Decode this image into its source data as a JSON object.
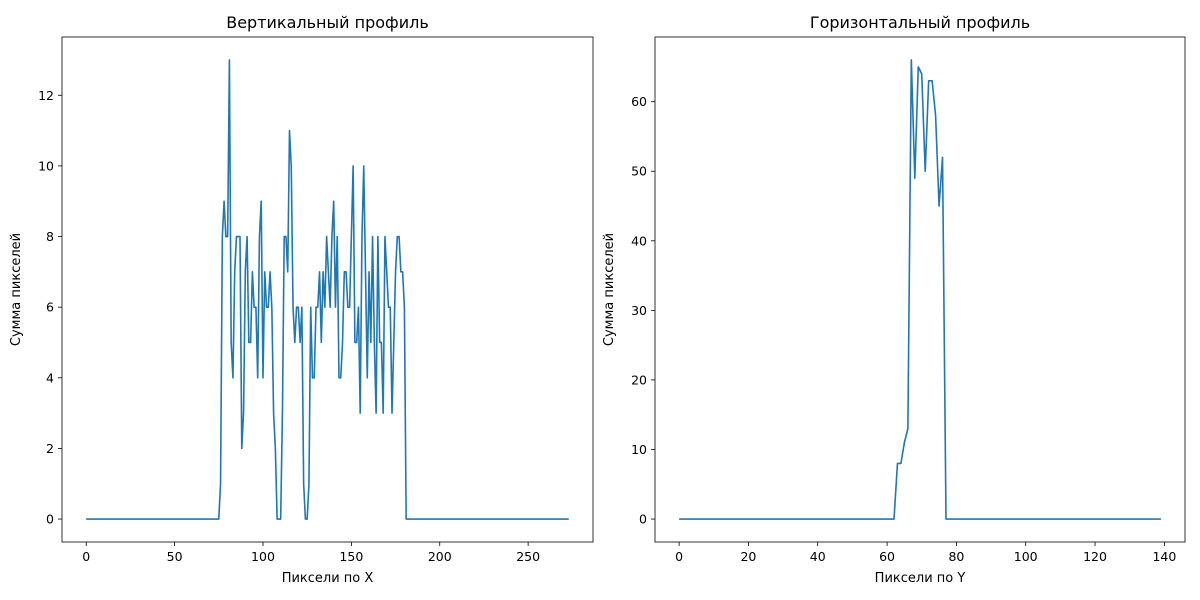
{
  "chart_data": [
    {
      "type": "line",
      "title": "Вертикальный профиль",
      "xlabel": "Пиксели по X",
      "ylabel": "Сумма пикселей",
      "xlim": [
        -13.7,
        286.7
      ],
      "ylim": [
        -0.65,
        13.65
      ],
      "xticks": [
        0,
        50,
        100,
        150,
        200,
        250
      ],
      "yticks": [
        0,
        2,
        4,
        6,
        8,
        10,
        12
      ],
      "grid": false,
      "color": "#1f77b4",
      "x": [
        0,
        75,
        76,
        77,
        78,
        79,
        80,
        81,
        82,
        83,
        84,
        85,
        86,
        87,
        88,
        89,
        90,
        91,
        92,
        93,
        94,
        95,
        96,
        97,
        98,
        99,
        100,
        101,
        102,
        103,
        104,
        105,
        106,
        107,
        108,
        109,
        110,
        111,
        112,
        113,
        114,
        115,
        116,
        117,
        118,
        119,
        120,
        121,
        122,
        123,
        124,
        125,
        126,
        127,
        128,
        129,
        130,
        131,
        132,
        133,
        134,
        135,
        136,
        137,
        138,
        139,
        140,
        141,
        142,
        143,
        144,
        145,
        146,
        147,
        148,
        149,
        150,
        151,
        152,
        153,
        154,
        155,
        156,
        157,
        158,
        159,
        160,
        161,
        162,
        163,
        164,
        165,
        166,
        167,
        168,
        169,
        170,
        171,
        172,
        173,
        174,
        175,
        176,
        177,
        178,
        179,
        180,
        181,
        182,
        273
      ],
      "y": [
        0,
        0,
        1,
        8,
        9,
        8,
        8,
        13,
        5,
        4,
        7,
        8,
        8,
        8,
        2,
        3,
        7,
        8,
        5,
        5,
        7,
        6,
        6,
        4,
        8,
        9,
        4,
        7,
        6,
        6,
        7,
        6,
        3,
        2,
        0,
        0,
        0,
        3,
        8,
        8,
        7,
        11,
        10,
        6,
        5,
        6,
        6,
        5,
        6,
        1,
        0,
        0,
        1,
        6,
        4,
        4,
        6,
        6,
        7,
        5,
        7,
        6,
        8,
        7,
        6,
        8,
        9,
        6,
        8,
        4,
        4,
        5,
        7,
        7,
        6,
        6,
        8,
        10,
        5,
        5,
        6,
        3,
        8,
        10,
        7,
        4,
        7,
        5,
        8,
        5,
        3,
        8,
        5,
        5,
        3,
        8,
        7,
        6,
        6,
        3,
        5,
        7,
        8,
        8,
        7,
        7,
        6,
        0,
        0,
        0
      ]
    },
    {
      "type": "line",
      "title": "Горизонтальный профиль",
      "xlabel": "Пиксели по Y",
      "ylabel": "Сумма пикселей",
      "xlim": [
        -6.95,
        145.95
      ],
      "ylim": [
        -3.3,
        69.3
      ],
      "xticks": [
        0,
        20,
        40,
        60,
        80,
        100,
        120,
        140
      ],
      "yticks": [
        0,
        10,
        20,
        30,
        40,
        50,
        60
      ],
      "grid": false,
      "color": "#1f77b4",
      "x": [
        0,
        62,
        63,
        64,
        65,
        66,
        67,
        68,
        69,
        70,
        71,
        72,
        73,
        74,
        75,
        76,
        77,
        139
      ],
      "y": [
        0,
        0,
        8,
        8,
        11,
        13,
        66,
        49,
        65,
        64,
        50,
        63,
        63,
        58,
        45,
        52,
        0,
        0
      ]
    }
  ]
}
